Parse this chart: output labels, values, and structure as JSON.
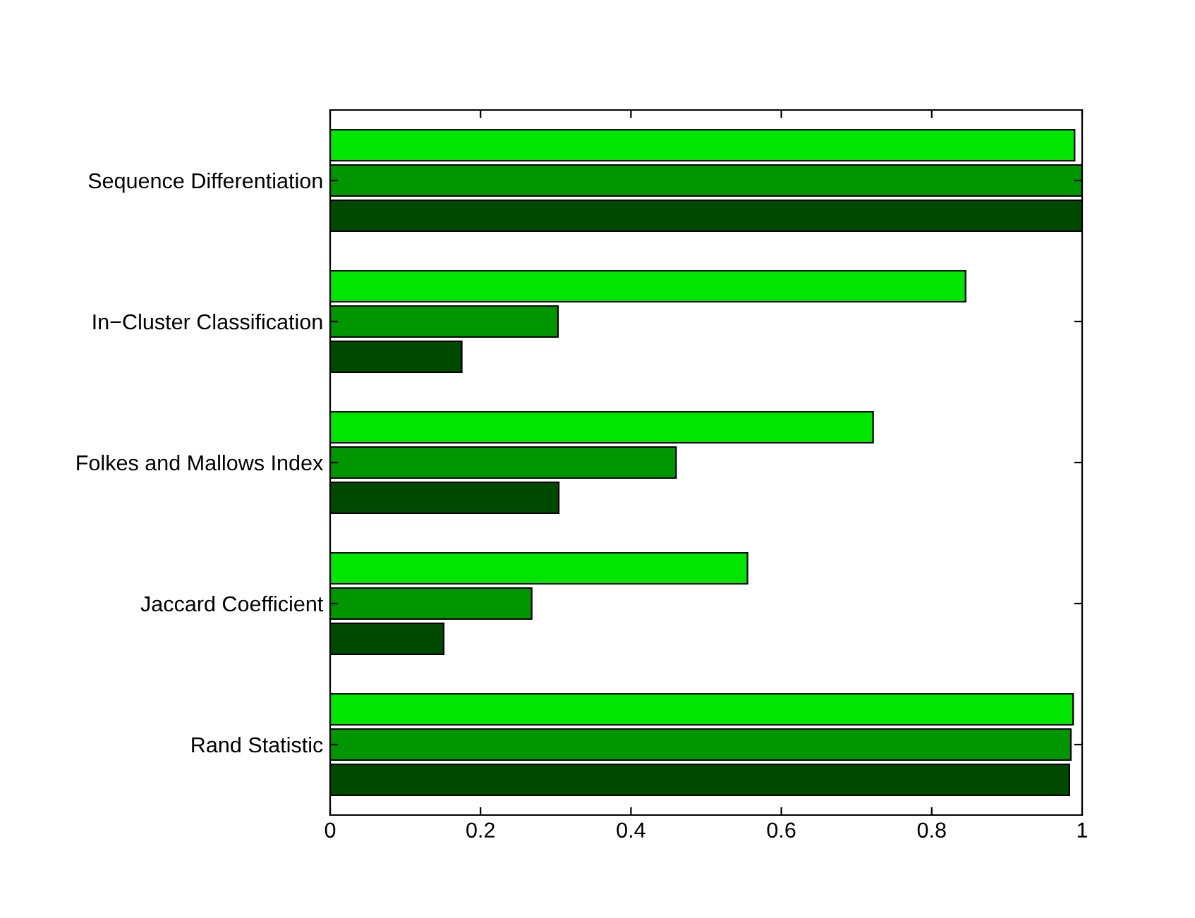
{
  "chart_data": {
    "type": "bar",
    "orientation": "horizontal",
    "categories": [
      "Sequence Differentiation",
      "In−Cluster Classification",
      "Folkes and Mallows Index",
      "Jaccard Coefficient",
      "Rand Statistic"
    ],
    "series": [
      {
        "color": "#004a00",
        "values": [
          1.0,
          0.175,
          0.304,
          0.151,
          0.983
        ]
      },
      {
        "color": "#009600",
        "values": [
          1.0,
          0.303,
          0.46,
          0.268,
          0.985
        ]
      },
      {
        "color": "#00e600",
        "values": [
          0.99,
          0.845,
          0.722,
          0.555,
          0.988
        ]
      }
    ],
    "xlim": [
      0,
      1
    ],
    "xticks": [
      0,
      0.2,
      0.4,
      0.6,
      0.8,
      1
    ],
    "grid": false,
    "legend": false
  }
}
